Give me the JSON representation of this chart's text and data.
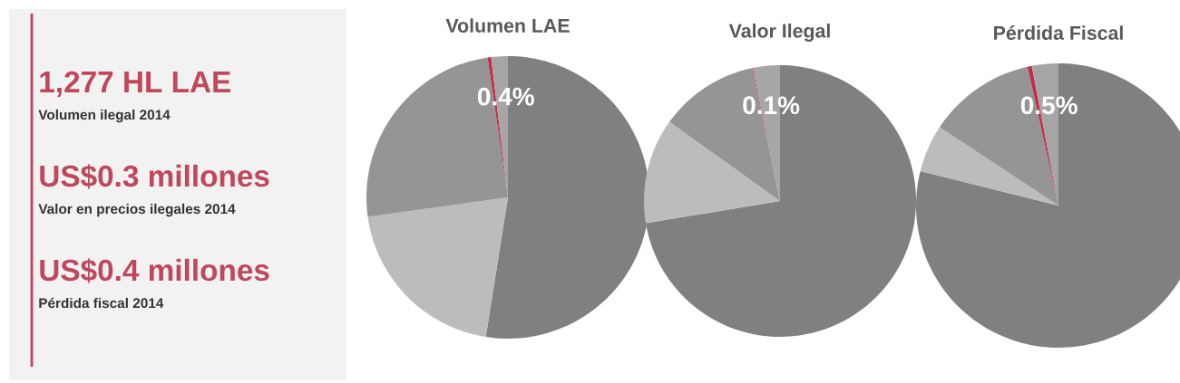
{
  "chart_data": [
    {
      "type": "other",
      "annotations": [
        "1,277 HL LAE",
        "Volumen ilegal 2014",
        "US$0.3 millones",
        "Valor en precios ilegales 2014",
        "US$0.4 millones",
        "Pérdida fiscal 2014"
      ]
    },
    {
      "type": "pie",
      "title": "Volumen LAE",
      "categories": [
        null,
        null,
        null,
        null,
        null
      ],
      "values": [
        52.5,
        20.3,
        24.9,
        0.4,
        1.9
      ],
      "colors": [
        "#808080",
        "#bcbcbc",
        "#959595",
        "#c0304a",
        "#a6a6a6"
      ],
      "value_labels": [
        null,
        null,
        null,
        "0.4%",
        null
      ]
    },
    {
      "type": "pie",
      "title": "Valor Ilegal",
      "categories": [
        null,
        null,
        null,
        null,
        null
      ],
      "values": [
        72.4,
        12.5,
        11.8,
        0.1,
        3.2
      ],
      "colors": [
        "#808080",
        "#bcbcbc",
        "#959595",
        "#c0304a",
        "#a6a6a6"
      ],
      "value_labels": [
        null,
        null,
        null,
        "0.1%",
        null
      ]
    },
    {
      "type": "pie",
      "title": "Pérdida Fiscal",
      "categories": [
        null,
        null,
        null,
        null,
        null
      ],
      "values": [
        78.9,
        5.4,
        12.2,
        0.5,
        3.0
      ],
      "colors": [
        "#808080",
        "#bcbcbc",
        "#959595",
        "#c0304a",
        "#a6a6a6"
      ],
      "value_labels": [
        null,
        null,
        null,
        "0.5%",
        null
      ]
    }
  ]
}
